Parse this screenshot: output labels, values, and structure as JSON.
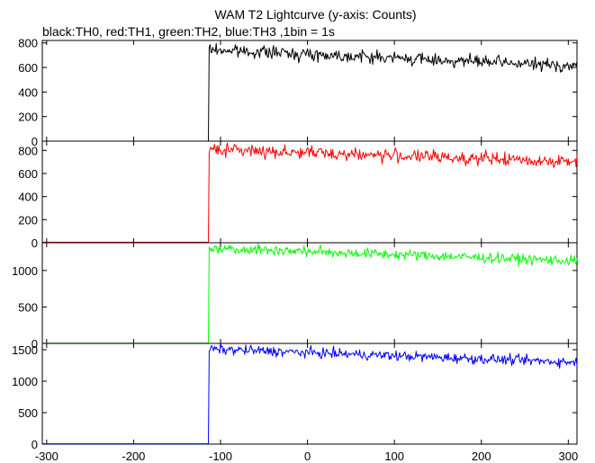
{
  "chart_data": {
    "type": "line",
    "title": "WAM T2 Lightcurve (y-axis: Counts)",
    "subtitle": "black:TH0, red:TH1, green:TH2, blue:TH3 ,1bin = 1s",
    "x": {
      "lim": [
        -305,
        310
      ],
      "ticks": [
        -300,
        -200,
        -100,
        0,
        100,
        200,
        300
      ]
    },
    "trigger_time": -113,
    "noise_seed": 7,
    "panels": [
      {
        "name": "TH0",
        "color": "#000000",
        "ylim": [
          0,
          820
        ],
        "yticks": [
          0,
          200,
          400,
          600,
          800
        ],
        "pre_level": 0,
        "post_start": 745,
        "post_end": 610,
        "noise": 25
      },
      {
        "name": "TH1",
        "color": "#ff0000",
        "ylim": [
          0,
          880
        ],
        "yticks": [
          0,
          200,
          400,
          600,
          800
        ],
        "pre_level": 5,
        "post_start": 810,
        "post_end": 700,
        "noise": 28
      },
      {
        "name": "TH2",
        "color": "#00ff00",
        "ylim": [
          0,
          1380
        ],
        "yticks": [
          0,
          500,
          1000
        ],
        "pre_level": 5,
        "post_start": 1310,
        "post_end": 1130,
        "noise": 35
      },
      {
        "name": "TH3",
        "color": "#0000ff",
        "ylim": [
          0,
          1600
        ],
        "yticks": [
          0,
          500,
          1000,
          1500
        ],
        "pre_level": 5,
        "post_start": 1510,
        "post_end": 1300,
        "noise": 40
      }
    ]
  }
}
